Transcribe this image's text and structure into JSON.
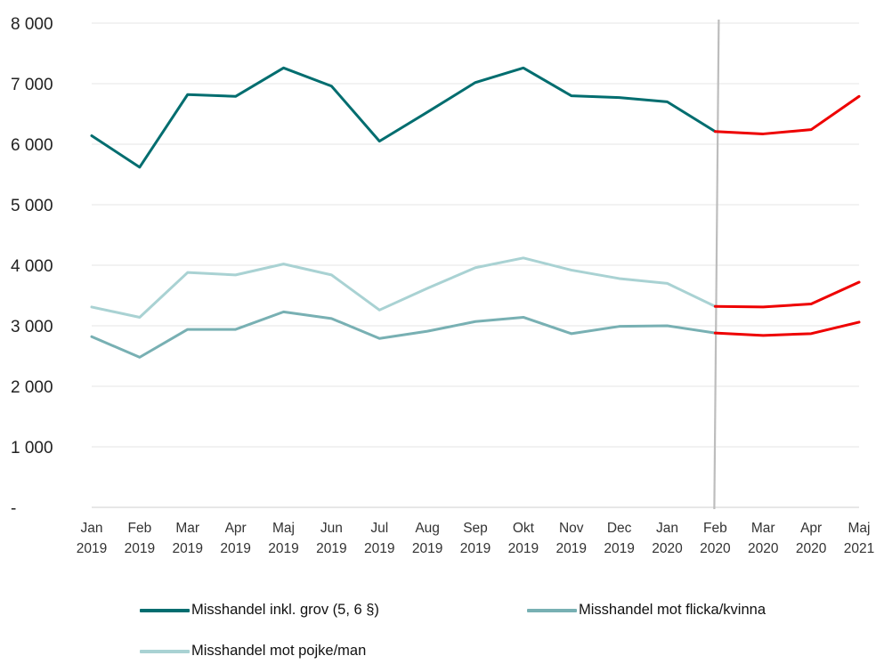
{
  "chart_data": {
    "type": "line",
    "title": "",
    "xlabel": "",
    "ylabel": "",
    "ylim": [
      0,
      8000
    ],
    "y_ticks": [
      {
        "value": 0,
        "label": "-"
      },
      {
        "value": 1000,
        "label": "1 000"
      },
      {
        "value": 2000,
        "label": "2 000"
      },
      {
        "value": 3000,
        "label": "3 000"
      },
      {
        "value": 4000,
        "label": "4 000"
      },
      {
        "value": 5000,
        "label": "5 000"
      },
      {
        "value": 6000,
        "label": "6 000"
      },
      {
        "value": 7000,
        "label": "7 000"
      },
      {
        "value": 8000,
        "label": "8 000"
      }
    ],
    "categories": [
      [
        "Jan",
        "2019"
      ],
      [
        "Feb",
        "2019"
      ],
      [
        "Mar",
        "2019"
      ],
      [
        "Apr",
        "2019"
      ],
      [
        "Maj",
        "2019"
      ],
      [
        "Jun",
        "2019"
      ],
      [
        "Jul",
        "2019"
      ],
      [
        "Aug",
        "2019"
      ],
      [
        "Sep",
        "2019"
      ],
      [
        "Okt",
        "2019"
      ],
      [
        "Nov",
        "2019"
      ],
      [
        "Dec",
        "2019"
      ],
      [
        "Jan",
        "2020"
      ],
      [
        "Feb",
        "2020"
      ],
      [
        "Mar",
        "2020"
      ],
      [
        "Apr",
        "2020"
      ],
      [
        "Maj",
        "2021"
      ]
    ],
    "grid": true,
    "reference_line_category": "Feb 2020",
    "highlight_from_index": 13,
    "highlight_color": "#ee0000",
    "legend_position": "bottom",
    "series": [
      {
        "name": "Misshandel inkl. grov (5, 6 §)",
        "color": "#006d6f",
        "values": [
          6140,
          5620,
          6820,
          6790,
          7260,
          6960,
          6050,
          6530,
          7020,
          7260,
          6800,
          6770,
          6700,
          6210,
          6170,
          6240,
          6790
        ]
      },
      {
        "name": "Misshandel mot flicka/kvinna",
        "color": "#78b0b3",
        "values": [
          2820,
          2480,
          2940,
          2940,
          3230,
          3120,
          2790,
          2910,
          3070,
          3140,
          2870,
          2990,
          3000,
          2880,
          2840,
          2870,
          3060
        ]
      },
      {
        "name": "Misshandel mot pojke/man",
        "color": "#a9d2d3",
        "values": [
          3310,
          3140,
          3880,
          3840,
          4020,
          3840,
          3260,
          3620,
          3960,
          4120,
          3920,
          3780,
          3700,
          3320,
          3310,
          3360,
          3720
        ]
      }
    ]
  }
}
